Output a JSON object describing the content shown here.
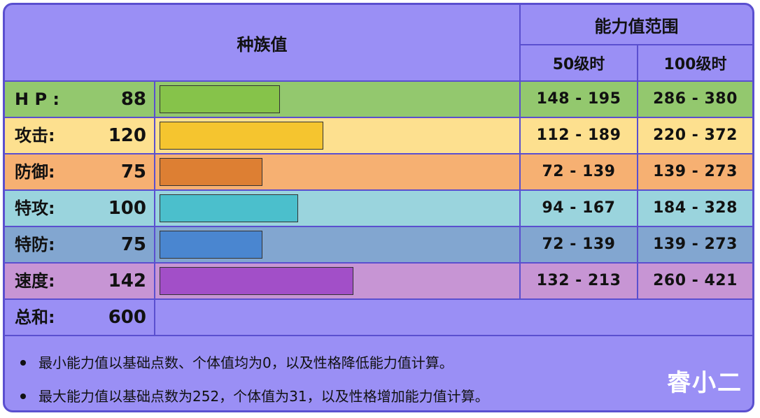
{
  "header": {
    "base_stats": "种族值",
    "range_title": "能力值范围",
    "lv50": "50级时",
    "lv100": "100级时"
  },
  "stats": [
    {
      "label": "H P :",
      "value": "88",
      "lv50": "148 - 195",
      "lv100": "286 - 380",
      "bar_fraction": 0.338,
      "row_color": "#93c86e",
      "bar_color": "#86c34a"
    },
    {
      "label": "攻击:",
      "value": "120",
      "lv50": "112 - 189",
      "lv100": "220 - 372",
      "bar_fraction": 0.46,
      "row_color": "#fde08f",
      "bar_color": "#f5c52f"
    },
    {
      "label": "防御:",
      "value": "75",
      "lv50": "72 - 139",
      "lv100": "139 - 273",
      "bar_fraction": 0.29,
      "row_color": "#f6b072",
      "bar_color": "#dd7f33"
    },
    {
      "label": "特攻:",
      "value": "100",
      "lv50": "94 - 167",
      "lv100": "184 - 328",
      "bar_fraction": 0.39,
      "row_color": "#9ad4dd",
      "bar_color": "#4bbfcc"
    },
    {
      "label": "特防:",
      "value": "75",
      "lv50": "72 - 139",
      "lv100": "139 - 273",
      "bar_fraction": 0.29,
      "row_color": "#82a6d0",
      "bar_color": "#4a86d0"
    },
    {
      "label": "速度:",
      "value": "142",
      "lv50": "132 - 213",
      "lv100": "260 - 421",
      "bar_fraction": 0.545,
      "row_color": "#c795d4",
      "bar_color": "#a24fc8"
    }
  ],
  "total": {
    "label": "总和:",
    "value": "600"
  },
  "notes": [
    "最小能力值以基础点数、个体值均为0，以及性格降低能力值计算。",
    "最大能力值以基础点数为252，个体值为31，以及性格增加能力值计算。"
  ],
  "watermark": "睿小二",
  "colors": {
    "background": "#9a8ff5",
    "border": "#5a4fcf"
  }
}
